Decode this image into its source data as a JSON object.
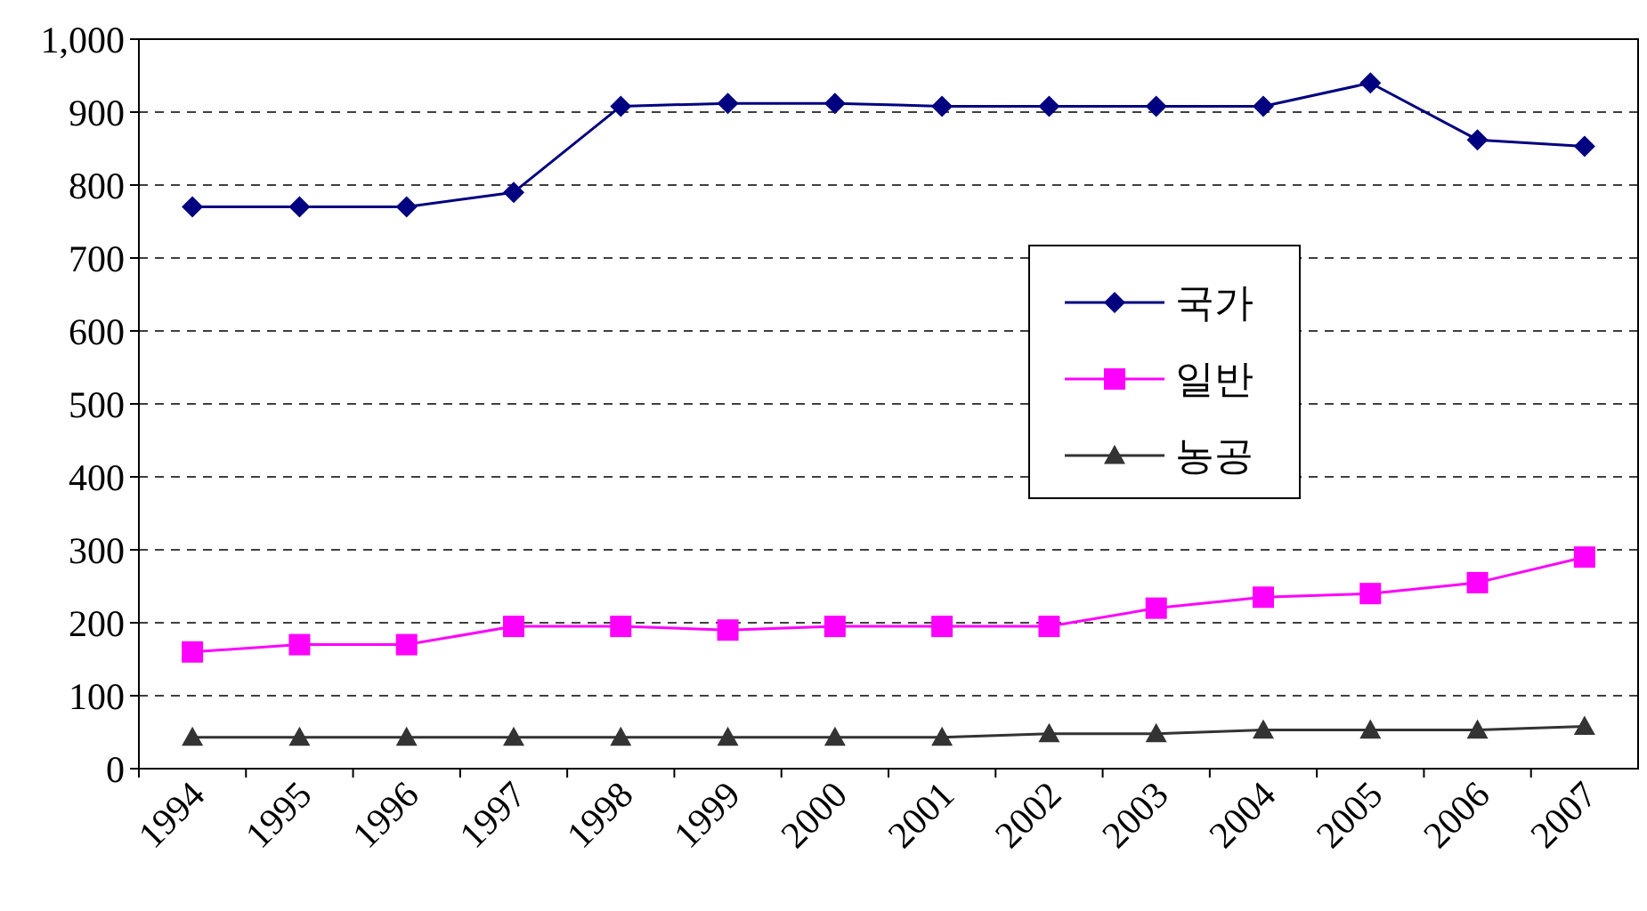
{
  "chart_data": {
    "type": "line",
    "categories": [
      "1994",
      "1995",
      "1996",
      "1997",
      "1998",
      "1999",
      "2000",
      "2001",
      "2002",
      "2003",
      "2004",
      "2005",
      "2006",
      "2007"
    ],
    "series": [
      {
        "name": "국가",
        "color": "#000080",
        "marker": "diamond",
        "values": [
          770,
          770,
          770,
          790,
          908,
          912,
          912,
          908,
          908,
          908,
          908,
          940,
          862,
          853
        ]
      },
      {
        "name": "일반",
        "color": "#ff00ff",
        "marker": "square",
        "values": [
          160,
          170,
          170,
          195,
          195,
          190,
          195,
          195,
          195,
          220,
          235,
          240,
          255,
          290
        ]
      },
      {
        "name": "농공",
        "color": "#333333",
        "marker": "triangle",
        "values": [
          43,
          43,
          43,
          43,
          43,
          43,
          43,
          43,
          48,
          48,
          53,
          53,
          53,
          58
        ]
      }
    ],
    "ylim": [
      0,
      1000
    ],
    "yticks": [
      0,
      100,
      200,
      300,
      400,
      500,
      600,
      700,
      800,
      900,
      {
        "value": 1000,
        "label": "1,000"
      }
    ],
    "grid": "y",
    "legend": "right",
    "line_style": "solid"
  }
}
